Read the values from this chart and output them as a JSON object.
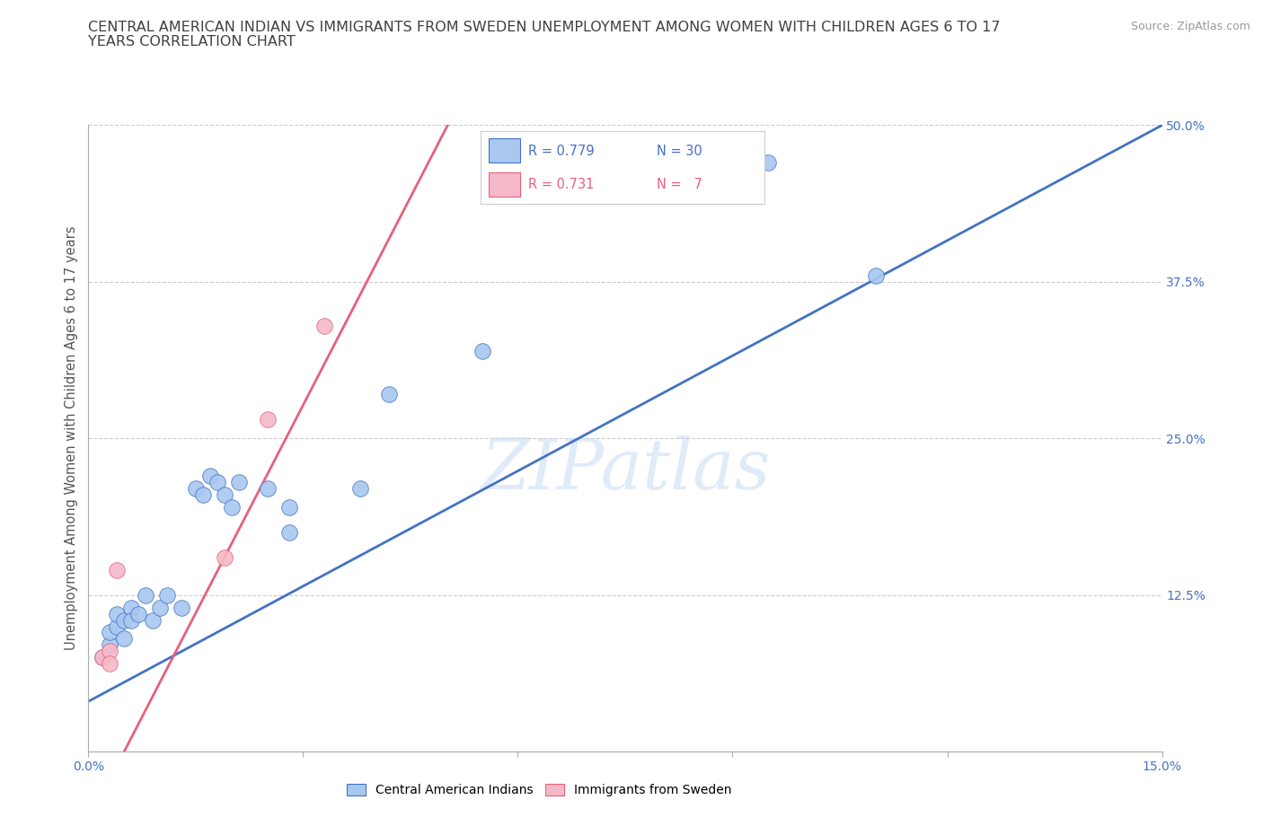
{
  "title_line1": "CENTRAL AMERICAN INDIAN VS IMMIGRANTS FROM SWEDEN UNEMPLOYMENT AMONG WOMEN WITH CHILDREN AGES 6 TO 17",
  "title_line2": "YEARS CORRELATION CHART",
  "source_text": "Source: ZipAtlas.com",
  "ylabel": "Unemployment Among Women with Children Ages 6 to 17 years",
  "xlim": [
    0.0,
    0.15
  ],
  "ylim": [
    0.0,
    0.5
  ],
  "xticks": [
    0.0,
    0.03,
    0.06,
    0.09,
    0.12,
    0.15
  ],
  "xticklabels": [
    "0.0%",
    "",
    "",
    "",
    "",
    "15.0%"
  ],
  "yticks": [
    0.0,
    0.125,
    0.25,
    0.375,
    0.5
  ],
  "yticklabels": [
    "",
    "12.5%",
    "25.0%",
    "37.5%",
    "50.0%"
  ],
  "blue_scatter_x": [
    0.002,
    0.003,
    0.003,
    0.004,
    0.004,
    0.005,
    0.005,
    0.006,
    0.006,
    0.007,
    0.008,
    0.009,
    0.01,
    0.011,
    0.013,
    0.015,
    0.016,
    0.017,
    0.018,
    0.019,
    0.02,
    0.021,
    0.025,
    0.028,
    0.028,
    0.038,
    0.042,
    0.055,
    0.095,
    0.11
  ],
  "blue_scatter_y": [
    0.075,
    0.085,
    0.095,
    0.1,
    0.11,
    0.09,
    0.105,
    0.115,
    0.105,
    0.11,
    0.125,
    0.105,
    0.115,
    0.125,
    0.115,
    0.21,
    0.205,
    0.22,
    0.215,
    0.205,
    0.195,
    0.215,
    0.21,
    0.195,
    0.175,
    0.21,
    0.285,
    0.32,
    0.47,
    0.38
  ],
  "pink_scatter_x": [
    0.002,
    0.003,
    0.003,
    0.004,
    0.019,
    0.025,
    0.033
  ],
  "pink_scatter_y": [
    0.075,
    0.08,
    0.07,
    0.145,
    0.155,
    0.265,
    0.34
  ],
  "blue_trendline": [
    0.0,
    0.15,
    0.04,
    0.5
  ],
  "pink_trendline": [
    0.005,
    0.052,
    0.0,
    0.52
  ],
  "blue_color": "#A8C8F0",
  "pink_color": "#F5B8C8",
  "blue_line_color": "#4472C4",
  "pink_line_color": "#E8607A",
  "R_blue": 0.779,
  "N_blue": 30,
  "R_pink": 0.731,
  "N_pink": 7,
  "legend_blue_label": "Central American Indians",
  "legend_pink_label": "Immigrants from Sweden",
  "watermark": "ZIPatlas",
  "background_color": "#ffffff",
  "grid_color": "#cccccc",
  "title_color": "#404040",
  "axis_label_color": "#555555",
  "right_tick_color": "#4472C4",
  "bottom_tick_color": "#4472C4"
}
